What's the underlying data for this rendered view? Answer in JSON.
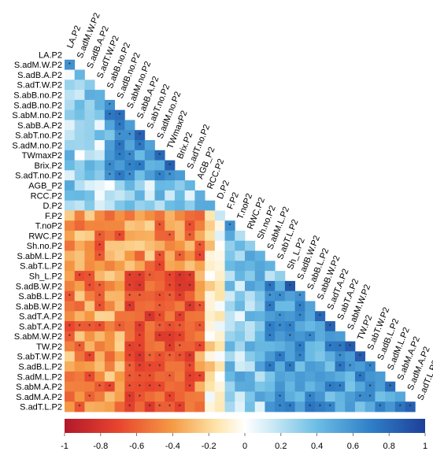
{
  "chart_data": {
    "type": "heatmap",
    "subtype": "lower-triangular correlation matrix",
    "variables": [
      "LA.P2",
      "S.adM.W.P2",
      "S.adB.A.P2",
      "S.adT.W.P2",
      "S.abB.no.P2",
      "S.adB.no.P2",
      "S.abM.no.P2",
      "S.abB.A.P2",
      "S.abT.no.P2",
      "S.adM.no.P2",
      "TWmaxP2",
      "Brix.P2",
      "S.adT.no.P2",
      "AGB_P2",
      "RCC.P2",
      "D.P2",
      "F.P2",
      "T.noP2",
      "RWC.P2",
      "Sh.no.P2",
      "S.abM.L.P2",
      "S.abT.L.P2",
      "Sh_L.P2",
      "S.adB.W.P2",
      "S.abB.L.P2",
      "S.abB.W.P2",
      "S.adT.A.P2",
      "S.abT.A.P2",
      "S.abM.W.P2",
      "TW.P2",
      "S.abT.W.P2",
      "S.adB.L.P2",
      "S.adM.L.P2",
      "S.abM.A.P2",
      "S.adM.A.P2",
      "S.adT.L.P2"
    ],
    "color_scale": {
      "min": -1,
      "max": 1,
      "ticks": [
        "-1",
        "-0.8",
        "-0.6",
        "-0.4",
        "-0.2",
        "0",
        "0.2",
        "0.4",
        "0.6",
        "0.8",
        "1"
      ],
      "negative_color": "#b2182b",
      "zero_color": "#ffffff",
      "positive_color": "#1e3f99"
    },
    "significance_marker": "*",
    "note": "Diagonal omitted; cell values estimated from colour."
  }
}
